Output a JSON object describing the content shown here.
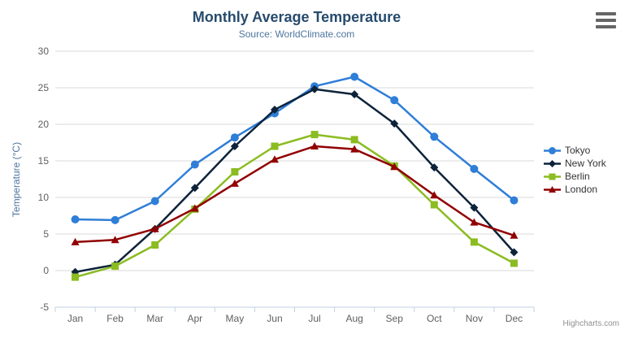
{
  "chart": {
    "title": "Monthly Average Temperature",
    "subtitle": "Source: WorldClimate.com",
    "credits": "Highcharts.com",
    "menu_icon": "context-menu-hamburger",
    "colors": {
      "title": "#274b6d",
      "subtitle": "#4d759e",
      "axis_title": "#4d759e",
      "axis_labels": "#606060",
      "grid": "#d8d8d8",
      "axis_line": "#c0d0e0",
      "legend_text": "#333333",
      "credits_text": "#909090",
      "menu_icon": "#666666",
      "background": "#ffffff"
    }
  },
  "chart_data": {
    "type": "line",
    "title": "Monthly Average Temperature",
    "subtitle": "Source: WorldClimate.com",
    "xlabel": "",
    "ylabel": "Temperature (°C)",
    "categories": [
      "Jan",
      "Feb",
      "Mar",
      "Apr",
      "May",
      "Jun",
      "Jul",
      "Aug",
      "Sep",
      "Oct",
      "Nov",
      "Dec"
    ],
    "ylim": [
      -5,
      30
    ],
    "yticks": [
      -5,
      0,
      5,
      10,
      15,
      20,
      25,
      30
    ],
    "grid": "horizontal",
    "legend_position": "right",
    "series": [
      {
        "name": "Tokyo",
        "color": "#2f7ed8",
        "marker": "circle",
        "values": [
          7.0,
          6.9,
          9.5,
          14.5,
          18.2,
          21.5,
          25.2,
          26.5,
          23.3,
          18.3,
          13.9,
          9.6
        ]
      },
      {
        "name": "New York",
        "color": "#0d233a",
        "marker": "diamond",
        "values": [
          -0.2,
          0.8,
          5.7,
          11.3,
          17.0,
          22.0,
          24.8,
          24.1,
          20.1,
          14.1,
          8.6,
          2.5
        ]
      },
      {
        "name": "Berlin",
        "color": "#8bbc21",
        "marker": "square",
        "values": [
          -0.9,
          0.6,
          3.5,
          8.4,
          13.5,
          17.0,
          18.6,
          17.9,
          14.3,
          9.0,
          3.9,
          1.0
        ]
      },
      {
        "name": "London",
        "color": "#910000",
        "marker": "triangle",
        "values": [
          3.9,
          4.2,
          5.7,
          8.5,
          11.9,
          15.2,
          17.0,
          16.6,
          14.2,
          10.3,
          6.6,
          4.8
        ]
      }
    ]
  }
}
